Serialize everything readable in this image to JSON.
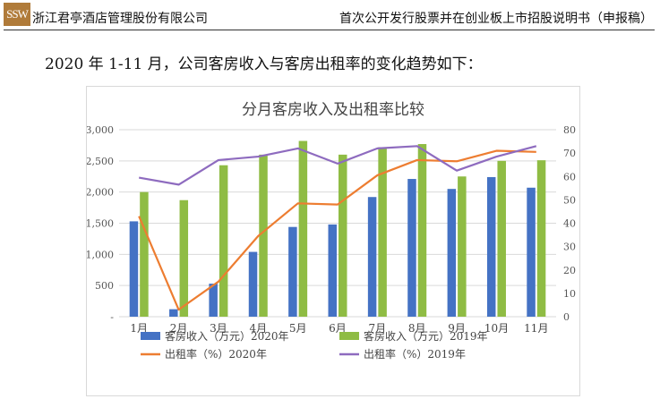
{
  "header": {
    "logo_text": "SSW",
    "company": "浙江君亭酒店管理股份有限公司",
    "document": "首次公开发行股票并在创业板上市招股说明书（申报稿）"
  },
  "intro": "2020 年 1-11 月，公司客房收入与客房出租率的变化趋势如下：",
  "chart_data": {
    "type": "bar+line",
    "title": "分月客房收入及出租率比较",
    "categories": [
      "1月",
      "2月",
      "3月",
      "4月",
      "5月",
      "6月",
      "7月",
      "8月",
      "9月",
      "10月",
      "11月"
    ],
    "y_left": {
      "range": [
        0,
        3000
      ],
      "ticks": [
        "-",
        "500",
        "1,000",
        "1,500",
        "2,000",
        "2,500",
        "3,000"
      ]
    },
    "y_right": {
      "range": [
        0,
        80
      ],
      "ticks": [
        "0",
        "10",
        "20",
        "30",
        "40",
        "50",
        "60",
        "70",
        "80"
      ]
    },
    "series": [
      {
        "name": "客房收入（万元）2020年",
        "type": "bar",
        "axis": "left",
        "color": "#4472c4",
        "values": [
          1530,
          120,
          530,
          1040,
          1440,
          1480,
          1920,
          2210,
          2050,
          2240,
          2070
        ]
      },
      {
        "name": "客房收入（万元）2019年",
        "type": "bar",
        "axis": "left",
        "color": "#8fbc44",
        "values": [
          2000,
          1870,
          2430,
          2600,
          2820,
          2600,
          2720,
          2770,
          2250,
          2500,
          2510
        ]
      },
      {
        "name": "出租率（%）2020年",
        "type": "line",
        "axis": "right",
        "color": "#ed7d31",
        "values": [
          43,
          3,
          15,
          34.5,
          48.5,
          48,
          60.5,
          67,
          66.5,
          71,
          70.5
        ]
      },
      {
        "name": "出租率（%）2019年",
        "type": "line",
        "axis": "right",
        "color": "#8e6bbf",
        "values": [
          59.5,
          56.5,
          67,
          68.5,
          72,
          65.5,
          72,
          73,
          62.5,
          68.5,
          73
        ]
      }
    ]
  }
}
